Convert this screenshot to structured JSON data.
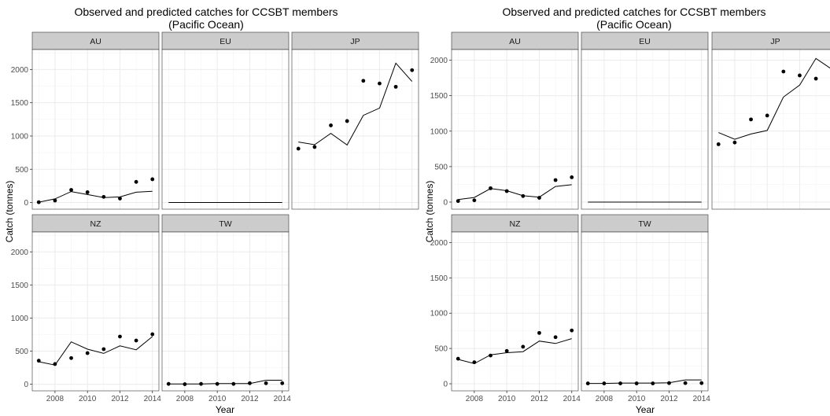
{
  "chart_data": [
    {
      "type": "line",
      "title": "Observed and predicted catches for CCSBT members",
      "subtitle": "(Pacific Ocean)",
      "xlabel": "Year",
      "ylabel": "Catch (tonnes)",
      "xlim": [
        2006.6,
        2014.4
      ],
      "ylim": [
        -100,
        2300
      ],
      "x_ticks": [
        2008,
        2010,
        2012,
        2014
      ],
      "y_ticks": [
        0,
        500,
        1000,
        1500,
        2000
      ],
      "grid": true,
      "panels": [
        {
          "label": "AU",
          "x": [
            2007,
            2008,
            2009,
            2010,
            2011,
            2012,
            2013,
            2014
          ],
          "observed": [
            5,
            30,
            190,
            155,
            85,
            60,
            310,
            350
          ],
          "predicted": [
            5,
            55,
            165,
            120,
            75,
            85,
            155,
            170
          ]
        },
        {
          "label": "EU",
          "x": [
            2007,
            2008,
            2009,
            2010,
            2011,
            2012,
            2013,
            2014
          ],
          "observed": [],
          "predicted": [
            0,
            0,
            0,
            0,
            0,
            0,
            0,
            0
          ]
        },
        {
          "label": "JP",
          "x": [
            2007,
            2008,
            2009,
            2010,
            2011,
            2012,
            2013,
            2014
          ],
          "observed": [
            810,
            835,
            1160,
            1225,
            1830,
            1790,
            1740,
            1990
          ],
          "predicted": [
            910,
            870,
            1040,
            865,
            1310,
            1420,
            2095,
            1820
          ]
        },
        {
          "label": "NZ",
          "x": [
            2007,
            2008,
            2009,
            2010,
            2011,
            2012,
            2013,
            2014
          ],
          "observed": [
            355,
            305,
            395,
            470,
            530,
            720,
            660,
            755
          ],
          "predicted": [
            340,
            290,
            640,
            530,
            465,
            580,
            520,
            720
          ]
        },
        {
          "label": "TW",
          "x": [
            2007,
            2008,
            2009,
            2010,
            2011,
            2012,
            2013,
            2014
          ],
          "observed": [
            5,
            0,
            5,
            5,
            5,
            15,
            15,
            15
          ],
          "predicted": [
            5,
            5,
            5,
            10,
            10,
            10,
            60,
            60
          ]
        }
      ]
    },
    {
      "type": "line",
      "title": "Observed and predicted catches for CCSBT members",
      "subtitle": "(Pacific Ocean)",
      "xlabel": "Year",
      "ylabel": "Catch (tonnes)",
      "xlim": [
        2006.6,
        2014.4
      ],
      "ylim": [
        -100,
        2150
      ],
      "x_ticks": [
        2008,
        2010,
        2012,
        2014
      ],
      "y_ticks": [
        0,
        500,
        1000,
        1500,
        2000
      ],
      "grid": true,
      "panels": [
        {
          "label": "AU",
          "x": [
            2007,
            2008,
            2009,
            2010,
            2011,
            2012,
            2013,
            2014
          ],
          "observed": [
            15,
            25,
            195,
            155,
            85,
            60,
            310,
            350
          ],
          "predicted": [
            35,
            65,
            190,
            160,
            90,
            70,
            220,
            245
          ]
        },
        {
          "label": "EU",
          "x": [
            2007,
            2008,
            2009,
            2010,
            2011,
            2012,
            2013,
            2014
          ],
          "observed": [],
          "predicted": [
            0,
            0,
            0,
            0,
            0,
            0,
            0,
            0
          ]
        },
        {
          "label": "JP",
          "x": [
            2007,
            2008,
            2009,
            2010,
            2011,
            2012,
            2013,
            2014
          ],
          "observed": [
            815,
            840,
            1165,
            1220,
            1840,
            1785,
            1740,
            1990
          ],
          "predicted": [
            980,
            885,
            960,
            1010,
            1480,
            1650,
            2025,
            1870
          ]
        },
        {
          "label": "NZ",
          "x": [
            2007,
            2008,
            2009,
            2010,
            2011,
            2012,
            2013,
            2014
          ],
          "observed": [
            355,
            305,
            400,
            465,
            525,
            720,
            660,
            755
          ],
          "predicted": [
            345,
            285,
            410,
            440,
            455,
            605,
            570,
            640
          ]
        },
        {
          "label": "TW",
          "x": [
            2007,
            2008,
            2009,
            2010,
            2011,
            2012,
            2013,
            2014
          ],
          "observed": [
            5,
            5,
            5,
            5,
            5,
            10,
            10,
            10
          ],
          "predicted": [
            5,
            5,
            10,
            10,
            10,
            15,
            55,
            55
          ]
        }
      ]
    }
  ]
}
